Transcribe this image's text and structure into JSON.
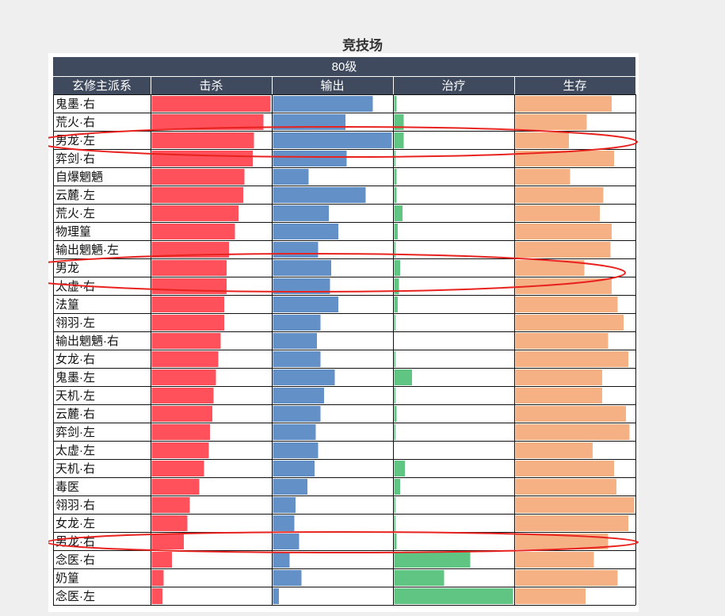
{
  "title": "竞技场",
  "chart_data": {
    "type": "bar",
    "title": "竞技场",
    "group_header": "80级",
    "category_header": "玄修主派系",
    "metrics": [
      "击杀",
      "输出",
      "治疗",
      "生存"
    ],
    "colors": {
      "击杀": "#fe515b",
      "输出": "#6490c8",
      "治疗": "#60c582",
      "生存": "#f5b184",
      "header_bg": "#3f4a5e",
      "highlight": "#e8221e"
    },
    "categories": [
      "鬼墨·右",
      "荒火·右",
      "男龙·左",
      "弈剑·右",
      "自爆魍魉",
      "云麓·左",
      "荒火·左",
      "物理篁",
      "输出魍魉·左",
      "男龙",
      "太虚·右",
      "法篁",
      "翎羽·左",
      "输出魍魉·右",
      "女龙·右",
      "鬼墨·左",
      "天机·左",
      "云麓·右",
      "弈剑·左",
      "太虚·左",
      "天机·右",
      "毒医",
      "翎羽·右",
      "女龙·左",
      "男龙·右",
      "念医·右",
      "奶篁",
      "念医·左"
    ],
    "series": [
      {
        "name": "击杀",
        "values": [
          1.0,
          0.94,
          0.86,
          0.85,
          0.78,
          0.77,
          0.73,
          0.7,
          0.65,
          0.63,
          0.63,
          0.61,
          0.61,
          0.58,
          0.56,
          0.54,
          0.52,
          0.51,
          0.49,
          0.48,
          0.44,
          0.4,
          0.32,
          0.3,
          0.27,
          0.17,
          0.1,
          0.09
        ]
      },
      {
        "name": "输出",
        "values": [
          0.84,
          0.61,
          1.0,
          0.62,
          0.3,
          0.78,
          0.47,
          0.55,
          0.38,
          0.49,
          0.48,
          0.55,
          0.4,
          0.37,
          0.4,
          0.52,
          0.43,
          0.4,
          0.36,
          0.38,
          0.35,
          0.29,
          0.19,
          0.18,
          0.22,
          0.14,
          0.24,
          0.05
        ]
      },
      {
        "name": "治疗",
        "values": [
          0.02,
          0.08,
          0.08,
          0.01,
          0.02,
          0.02,
          0.07,
          0.03,
          0.01,
          0.05,
          0.04,
          0.03,
          0.01,
          0.0,
          0.01,
          0.15,
          0.01,
          0.02,
          0.01,
          0.0,
          0.09,
          0.05,
          0.01,
          0.01,
          0.02,
          0.64,
          0.42,
          1.0
        ]
      },
      {
        "name": "生存",
        "values": [
          0.81,
          0.6,
          0.45,
          0.83,
          0.46,
          0.74,
          0.71,
          0.81,
          0.8,
          0.58,
          0.81,
          0.86,
          0.91,
          0.78,
          0.95,
          0.73,
          0.73,
          0.93,
          0.96,
          0.65,
          0.83,
          0.85,
          1.0,
          0.95,
          0.78,
          0.66,
          0.86,
          0.59
        ]
      }
    ],
    "xlim": [
      0,
      1
    ],
    "grid": true,
    "highlighted_rows": [
      "男龙·左",
      "男龙",
      "男龙·右"
    ]
  }
}
